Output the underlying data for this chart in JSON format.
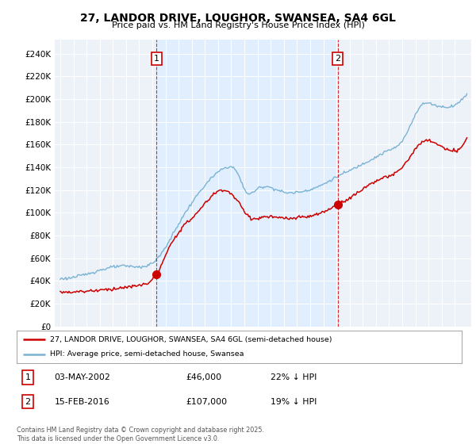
{
  "title": "27, LANDOR DRIVE, LOUGHOR, SWANSEA, SA4 6GL",
  "subtitle": "Price paid vs. HM Land Registry's House Price Index (HPI)",
  "hpi_color": "#7ab3d4",
  "price_color": "#cc0000",
  "marker_color": "#cc0000",
  "shade_color": "#ddeeff",
  "plot_bg": "#edf2f9",
  "legend1": "27, LANDOR DRIVE, LOUGHOR, SWANSEA, SA4 6GL (semi-detached house)",
  "legend2": "HPI: Average price, semi-detached house, Swansea",
  "table_row1": [
    "1",
    "03-MAY-2002",
    "£46,000",
    "22% ↓ HPI"
  ],
  "table_row2": [
    "2",
    "15-FEB-2016",
    "£107,000",
    "19% ↓ HPI"
  ],
  "footnote": "Contains HM Land Registry data © Crown copyright and database right 2025.\nThis data is licensed under the Open Government Licence v3.0.",
  "yticks": [
    0,
    20000,
    40000,
    60000,
    80000,
    100000,
    120000,
    140000,
    160000,
    180000,
    200000,
    220000,
    240000
  ],
  "ytick_labels": [
    "£0",
    "£20K",
    "£40K",
    "£60K",
    "£80K",
    "£100K",
    "£120K",
    "£140K",
    "£160K",
    "£180K",
    "£200K",
    "£220K",
    "£240K"
  ]
}
